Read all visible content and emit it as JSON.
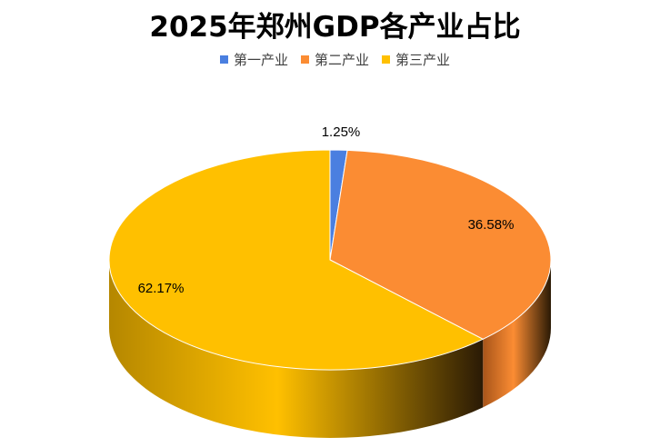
{
  "chart_data": {
    "type": "pie",
    "title": "2025年郑州GDP各产业占比",
    "legend_position": "top",
    "categories": [
      "第一产业",
      "第二产业",
      "第三产业"
    ],
    "values": [
      1.25,
      36.58,
      62.17
    ],
    "data_labels": [
      "1.25%",
      "36.58%",
      "62.17%"
    ],
    "colors": [
      "#4a7fe0",
      "#fb8c33",
      "#ffc000"
    ],
    "side_colors": [
      "#2d55a8",
      "#a8551a",
      "#b58700"
    ]
  }
}
